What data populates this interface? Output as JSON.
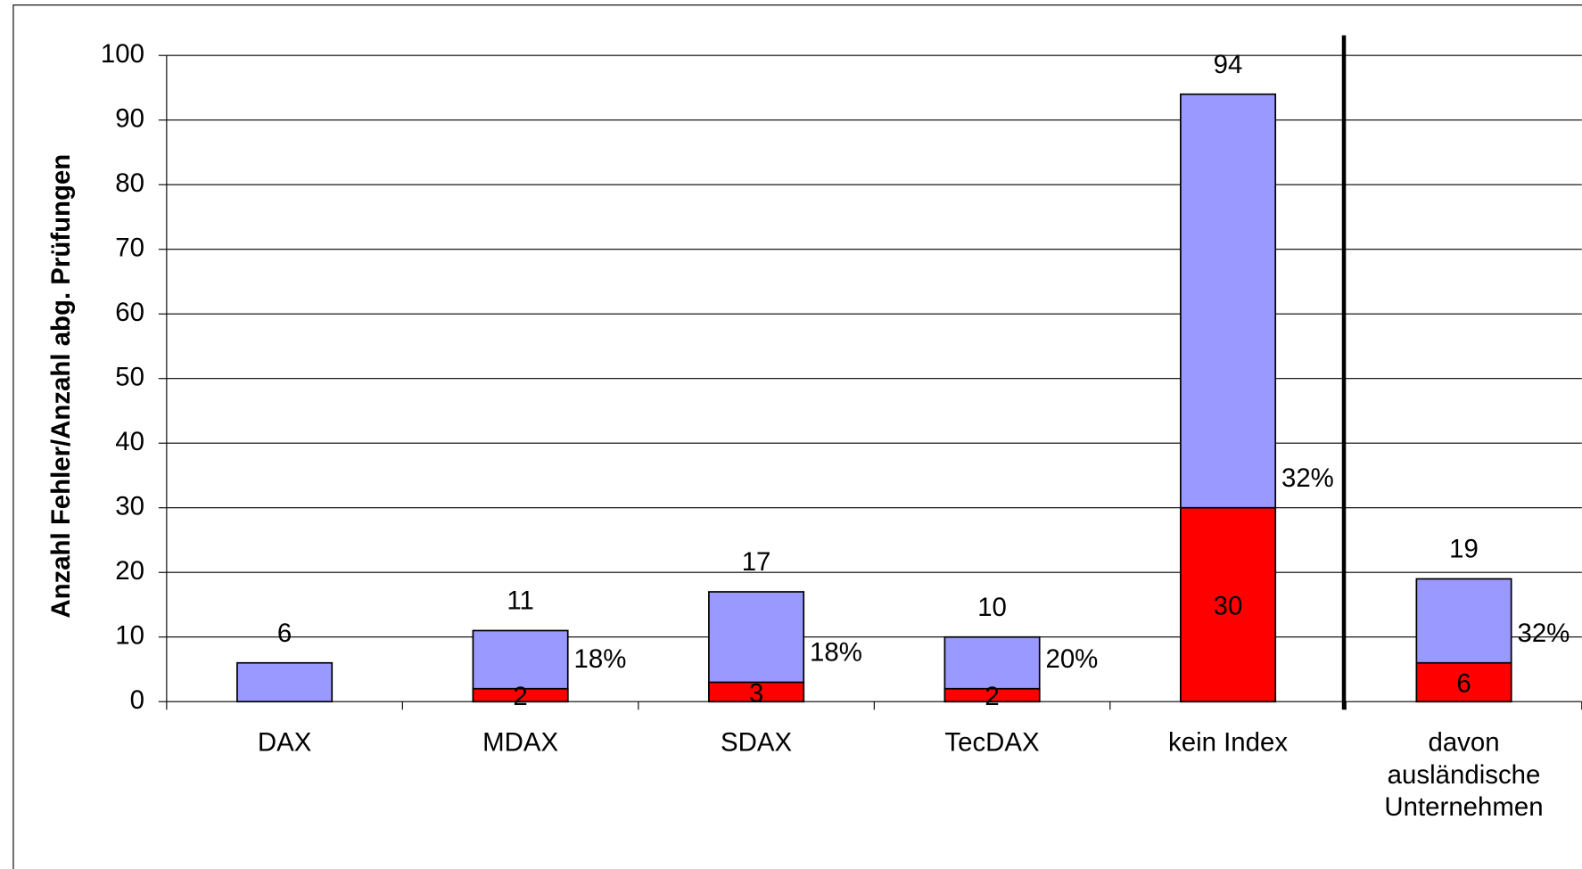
{
  "chart_data": {
    "type": "bar",
    "y_label": "Anzahl Fehler/Anzahl abg. Prüfungen",
    "categories": [
      "DAX",
      "MDAX",
      "SDAX",
      "TecDAX",
      "kein Index",
      "davon ausländische Unternehmen"
    ],
    "series": [
      {
        "color": "#9999ff",
        "values": [
          6,
          11,
          17,
          10,
          94,
          19
        ]
      },
      {
        "color": "#ff0000",
        "values": [
          null,
          2,
          3,
          2,
          30,
          6
        ]
      }
    ],
    "shares": {
      "values": [
        null,
        18,
        18,
        20,
        32,
        32
      ],
      "value_labels": [
        null,
        "18%",
        "18%",
        "20%",
        "32%",
        "32%"
      ]
    },
    "ylim": [
      0,
      100
    ],
    "yticks": [
      0,
      10,
      20,
      30,
      40,
      50,
      60,
      70,
      80,
      90,
      100
    ],
    "grid": true
  }
}
